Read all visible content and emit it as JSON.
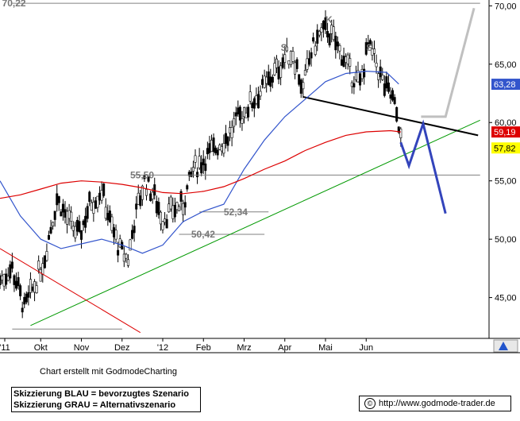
{
  "chart_data": {
    "type": "candlestick",
    "y_axis": {
      "ticks": [
        "70,00",
        "65,00",
        "60,00",
        "55,00",
        "50,00",
        "45,00"
      ],
      "ylim": [
        41.5,
        70.5
      ],
      "position": "right"
    },
    "x_axis": {
      "ticks": [
        "'11",
        "Okt",
        "Nov",
        "Dez",
        "'12",
        "Feb",
        "Mrz",
        "Apr",
        "Mai",
        "Jun"
      ]
    },
    "price_labels": [
      {
        "text": "63,28",
        "value": 63.28,
        "color": "#3355cc"
      },
      {
        "text": "59,19",
        "value": 59.19,
        "color": "#dd0000"
      },
      {
        "text": "57,82",
        "value": 57.82,
        "color": "#ffff00"
      }
    ],
    "annotations": [
      {
        "text": "70,22",
        "x": 0.05,
        "y": 70.22
      },
      {
        "text": "55,50",
        "x": 3.2,
        "y": 55.5
      },
      {
        "text": "52,34",
        "x": 5.5,
        "y": 52.34
      },
      {
        "text": "50,42",
        "x": 4.7,
        "y": 50.42
      },
      {
        "text": "S",
        "x": 6.9,
        "y": 66.4
      },
      {
        "text": "K",
        "x": 8.0,
        "y": 68.8
      },
      {
        "text": "S",
        "x": 9.0,
        "y": 66.4
      }
    ],
    "horizontal_lines": [
      {
        "value": 70.22,
        "color": "#808080",
        "x_from": 0.3,
        "x_to": 11.8
      },
      {
        "value": 55.5,
        "color": "#808080",
        "x_from": 3.3,
        "x_to": 11.8
      },
      {
        "value": 52.34,
        "color": "#808080",
        "x_from": 4.9,
        "x_to": 6.6
      },
      {
        "value": 50.42,
        "color": "#808080",
        "x_from": 4.4,
        "x_to": 6.5
      },
      {
        "value": 42.3,
        "color": "#808080",
        "x_from": 0.3,
        "x_to": 3.0
      }
    ],
    "trend_lines": [
      {
        "name": "support",
        "color": "#009900",
        "points": [
          [
            0.75,
            42.6
          ],
          [
            11.8,
            60.2
          ]
        ]
      },
      {
        "name": "downtrend",
        "color": "#dd0000",
        "points": [
          [
            0.0,
            49.2
          ],
          [
            3.45,
            42.0
          ]
        ]
      },
      {
        "name": "neckline",
        "color": "#000000",
        "points": [
          [
            7.45,
            62.2
          ],
          [
            11.75,
            58.9
          ]
        ]
      }
    ],
    "moving_averages": [
      {
        "name": "ma-blue",
        "color": "#3355cc",
        "points": [
          [
            0,
            55
          ],
          [
            0.5,
            52
          ],
          [
            1,
            50
          ],
          [
            1.5,
            49.2
          ],
          [
            2,
            49.6
          ],
          [
            2.5,
            50
          ],
          [
            3,
            49.5
          ],
          [
            3.5,
            48.8
          ],
          [
            4,
            49.5
          ],
          [
            4.5,
            51.5
          ],
          [
            5,
            52.4
          ],
          [
            5.5,
            53
          ],
          [
            6,
            56
          ],
          [
            6.5,
            58.5
          ],
          [
            7,
            60.5
          ],
          [
            7.5,
            62
          ],
          [
            8,
            63.5
          ],
          [
            8.5,
            64.2
          ],
          [
            9,
            64.4
          ],
          [
            9.5,
            64.3
          ],
          [
            9.8,
            63.3
          ]
        ]
      },
      {
        "name": "ma-red",
        "color": "#dd0000",
        "points": [
          [
            0,
            53.5
          ],
          [
            0.5,
            53.8
          ],
          [
            1,
            54.3
          ],
          [
            1.5,
            54.8
          ],
          [
            2,
            55
          ],
          [
            2.5,
            54.9
          ],
          [
            3,
            54.7
          ],
          [
            3.5,
            54.4
          ],
          [
            4,
            54
          ],
          [
            4.5,
            53.9
          ],
          [
            5,
            54.1
          ],
          [
            5.5,
            54.5
          ],
          [
            6,
            55.2
          ],
          [
            6.5,
            56
          ],
          [
            7,
            56.7
          ],
          [
            7.5,
            57.6
          ],
          [
            8,
            58.3
          ],
          [
            8.5,
            58.9
          ],
          [
            9,
            59.2
          ],
          [
            9.6,
            59.3
          ],
          [
            9.85,
            59.19
          ]
        ]
      }
    ],
    "scenario_blue": {
      "color": "#3344bb",
      "points": [
        [
          9.85,
          58.3
        ],
        [
          10.05,
          56.3
        ],
        [
          10.4,
          59.9
        ],
        [
          10.95,
          52.2
        ]
      ]
    },
    "scenario_grey": {
      "color": "#c0c0c0",
      "points": [
        [
          10.35,
          60.5
        ],
        [
          10.95,
          60.5
        ],
        [
          11.65,
          69.8
        ]
      ]
    },
    "price_path": [
      [
        0,
        46.5
      ],
      [
        0.3,
        47.5
      ],
      [
        0.6,
        44.0
      ],
      [
        0.9,
        46.5
      ],
      [
        1.1,
        48.5
      ],
      [
        1.4,
        53.5
      ],
      [
        1.7,
        51.5
      ],
      [
        1.95,
        50.3
      ],
      [
        2.2,
        53.0
      ],
      [
        2.5,
        54.2
      ],
      [
        2.7,
        51.5
      ],
      [
        2.95,
        49.0
      ],
      [
        3.15,
        48.3
      ],
      [
        3.3,
        51.5
      ],
      [
        3.55,
        55.0
      ],
      [
        3.8,
        53.6
      ],
      [
        4.0,
        51.8
      ],
      [
        4.25,
        52.5
      ],
      [
        4.5,
        53.0
      ],
      [
        4.75,
        56.0
      ],
      [
        5.0,
        56.8
      ],
      [
        5.3,
        57.8
      ],
      [
        5.6,
        58.8
      ],
      [
        5.9,
        60.5
      ],
      [
        6.2,
        61.8
      ],
      [
        6.5,
        63.0
      ],
      [
        6.8,
        64.5
      ],
      [
        7.0,
        65.5
      ],
      [
        7.2,
        66.0
      ],
      [
        7.45,
        62.8
      ],
      [
        7.65,
        66.0
      ],
      [
        7.85,
        67.5
      ],
      [
        8.05,
        68.0
      ],
      [
        8.25,
        66.8
      ],
      [
        8.45,
        65.5
      ],
      [
        8.65,
        64.0
      ],
      [
        8.85,
        63.3
      ],
      [
        9.05,
        66.5
      ],
      [
        9.25,
        65.0
      ],
      [
        9.45,
        63.0
      ],
      [
        9.65,
        62.0
      ],
      [
        9.8,
        60.0
      ],
      [
        9.85,
        58.5
      ]
    ]
  },
  "footer": {
    "credit": "Chart erstellt mit GodmodeCharting",
    "legend_blue": "Skizzierung BLAU = bevorzugtes Szenario",
    "legend_grey": "Skizzierung GRAU = Alternativszenario",
    "copyright_url": "http://www.godmode-trader.de",
    "copyright_symbol": "©"
  }
}
